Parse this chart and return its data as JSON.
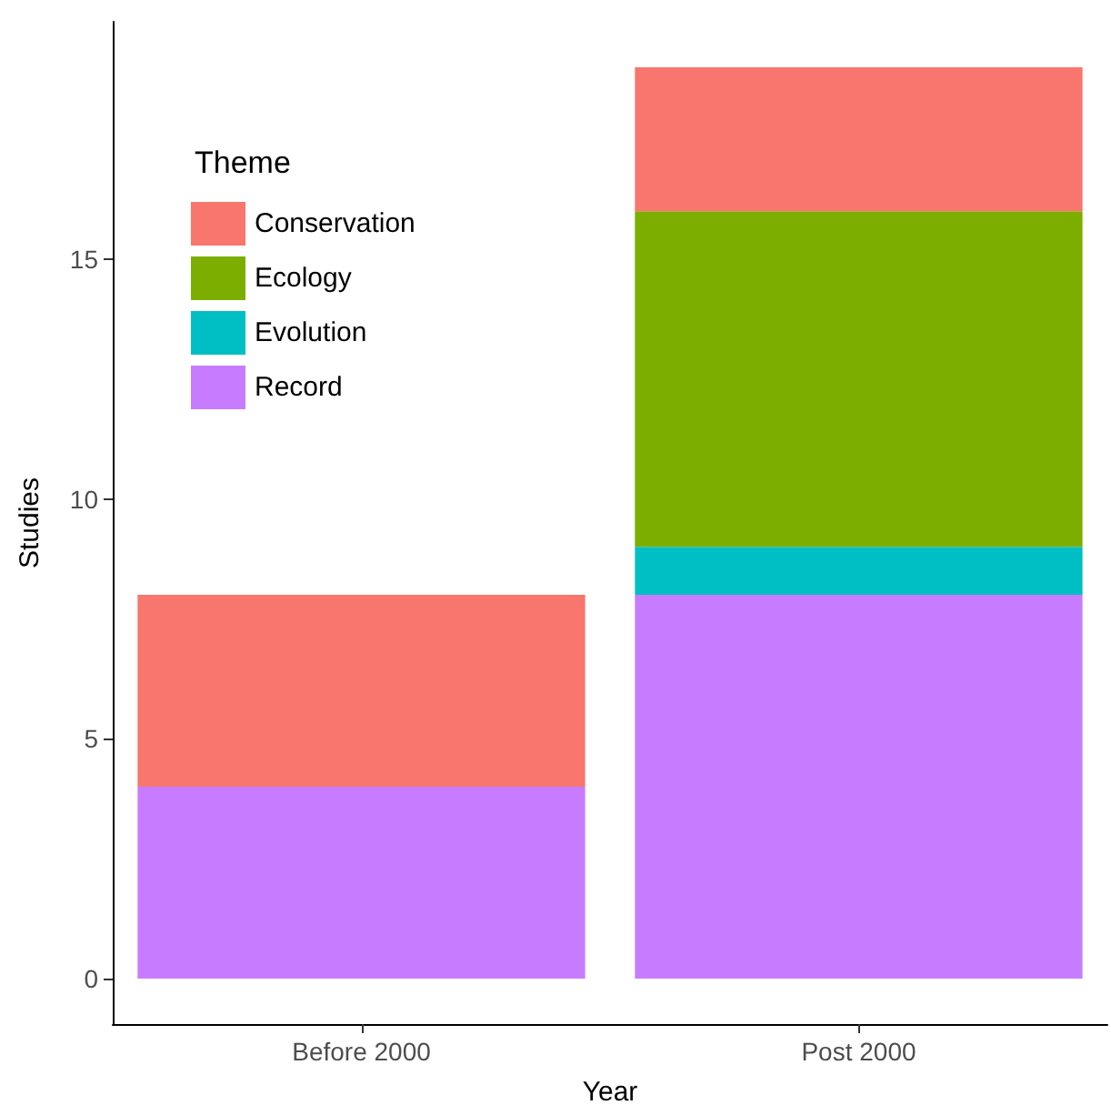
{
  "chart_data": {
    "type": "bar",
    "stacked": true,
    "xlabel": "Year",
    "ylabel": "Studies",
    "legend_title": "Theme",
    "legend": "top left",
    "grid": false,
    "categories": [
      "Before 2000",
      "Post 2000"
    ],
    "series": [
      {
        "name": "Record",
        "color": "#c77cff",
        "values": [
          4,
          8
        ]
      },
      {
        "name": "Evolution",
        "color": "#00bfc4",
        "values": [
          0,
          1
        ]
      },
      {
        "name": "Ecology",
        "color": "#7cae00",
        "values": [
          0,
          7
        ]
      },
      {
        "name": "Conservation",
        "color": "#f8766d",
        "values": [
          4,
          3
        ]
      }
    ],
    "ylim": [
      -0.95,
      19.95
    ],
    "yticks": [
      0,
      5,
      10,
      15
    ]
  }
}
